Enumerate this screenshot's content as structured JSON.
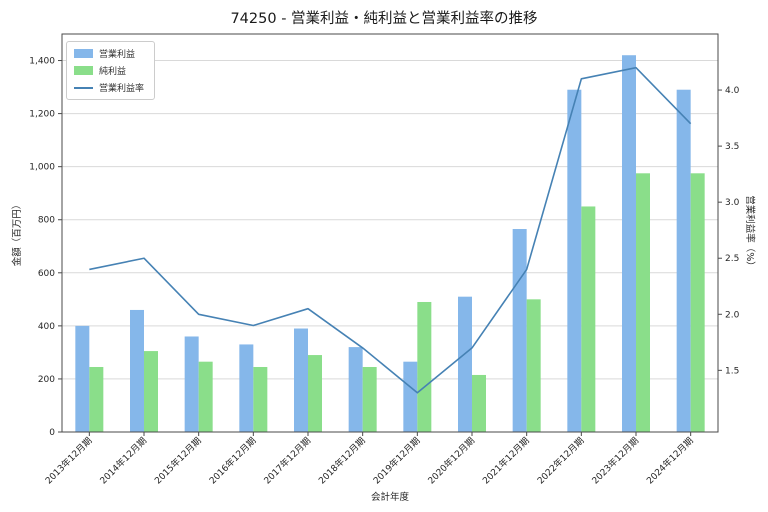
{
  "chart_data": {
    "type": "bar+line",
    "title": "74250 - 営業利益・純利益と営業利益率の推移",
    "xlabel": "会計年度",
    "ylabel_left": "金額（百万円）",
    "ylabel_right": "営業利益率（%）",
    "categories": [
      "2013年12月期",
      "2014年12月期",
      "2015年12月期",
      "2016年12月期",
      "2017年12月期",
      "2018年12月期",
      "2019年12月期",
      "2020年12月期",
      "2021年12月期",
      "2022年12月期",
      "2023年12月期",
      "2024年12月期"
    ],
    "series": [
      {
        "name": "営業利益",
        "kind": "bar",
        "axis": "left",
        "color": "#85b7ea",
        "values": [
          400,
          460,
          360,
          330,
          390,
          320,
          265,
          510,
          765,
          1290,
          1420,
          1290
        ]
      },
      {
        "name": "純利益",
        "kind": "bar",
        "axis": "left",
        "color": "#8ade8a",
        "values": [
          245,
          305,
          265,
          245,
          290,
          245,
          490,
          215,
          500,
          850,
          975,
          975
        ]
      },
      {
        "name": "営業利益率",
        "kind": "line",
        "axis": "right",
        "color": "#4682b4",
        "values": [
          2.4,
          2.5,
          2.0,
          1.9,
          2.05,
          1.7,
          1.3,
          1.7,
          2.4,
          4.1,
          4.2,
          3.7
        ]
      }
    ],
    "left_axis": {
      "min": 0,
      "max": 1500,
      "ticks": [
        0,
        200,
        400,
        600,
        800,
        1000,
        1200,
        1400
      ]
    },
    "right_axis": {
      "min": 0.95,
      "max": 4.5,
      "ticks": [
        1.5,
        2.0,
        2.5,
        3.0,
        3.5,
        4.0
      ]
    },
    "legend": {
      "position": "upper-left",
      "entries": [
        "営業利益",
        "純利益",
        "営業利益率"
      ]
    },
    "grid": true,
    "colors": {
      "grid": "#d9d9d9",
      "spine": "#4a4a4a",
      "text": "#262626",
      "background": "#ffffff"
    }
  }
}
